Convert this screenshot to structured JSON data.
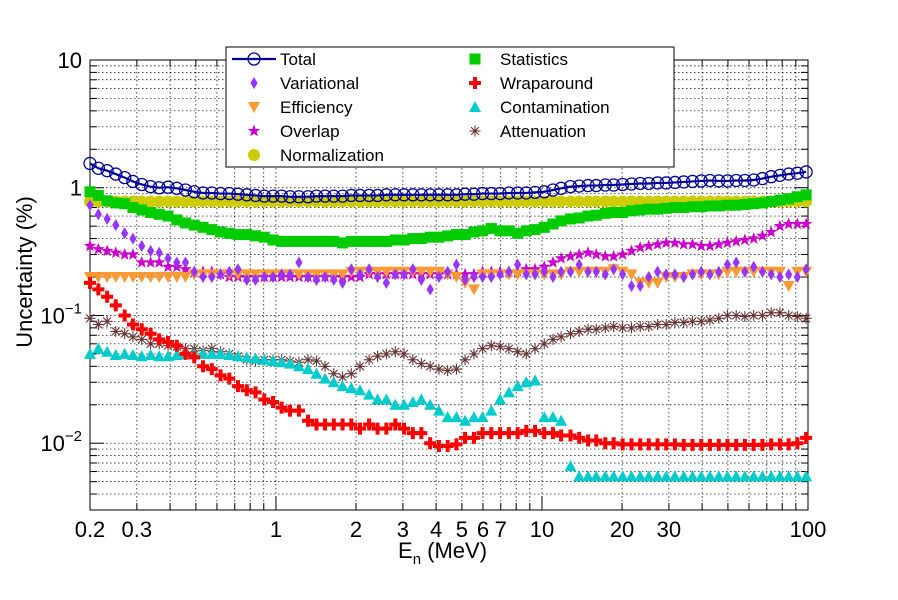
{
  "chart_data": {
    "type": "scatter",
    "xlabel": "E",
    "xlabel_sub": "n",
    "xlabel_unit": " (MeV)",
    "ylabel": "Uncertainty (%)",
    "xscale": "log",
    "yscale": "log",
    "xlim": [
      0.2,
      100
    ],
    "ylim": [
      0.003,
      10
    ],
    "grid": true,
    "legend_placement": "top-center",
    "x_tick_labels": [
      {
        "value": 0.2,
        "label": "0.2"
      },
      {
        "value": 0.3,
        "label": "0.3"
      },
      {
        "value": 1,
        "label": "1"
      },
      {
        "value": 2,
        "label": "2"
      },
      {
        "value": 3,
        "label": "3"
      },
      {
        "value": 4,
        "label": "4"
      },
      {
        "value": 5,
        "label": "5"
      },
      {
        "value": 6,
        "label": "6"
      },
      {
        "value": 7,
        "label": "7"
      },
      {
        "value": 10,
        "label": "10"
      },
      {
        "value": 20,
        "label": "20"
      },
      {
        "value": 30,
        "label": "30"
      },
      {
        "value": 100,
        "label": "100"
      }
    ],
    "y_tick_labels": [
      {
        "value": 10,
        "base": "10",
        "exp": ""
      },
      {
        "value": 1,
        "base": "1",
        "exp": ""
      },
      {
        "value": 0.1,
        "base": "10",
        "exp": "−1"
      },
      {
        "value": 0.01,
        "base": "10",
        "exp": "−2"
      }
    ],
    "x": [
      0.2,
      0.215,
      0.232,
      0.25,
      0.27,
      0.29,
      0.313,
      0.338,
      0.364,
      0.393,
      0.424,
      0.457,
      0.493,
      0.532,
      0.574,
      0.619,
      0.668,
      0.72,
      0.777,
      0.838,
      0.904,
      0.975,
      1.05,
      1.13,
      1.22,
      1.32,
      1.42,
      1.53,
      1.65,
      1.78,
      1.92,
      2.07,
      2.24,
      2.41,
      2.6,
      2.81,
      3.03,
      3.27,
      3.52,
      3.8,
      4.1,
      4.42,
      4.77,
      5.14,
      5.55,
      5.98,
      6.45,
      6.96,
      7.51,
      8.1,
      8.73,
      9.42,
      10.2,
      11,
      11.8,
      12.8,
      13.8,
      14.9,
      16,
      17.3,
      18.6,
      20.1,
      21.7,
      23.4,
      25.2,
      27.2,
      29.3,
      31.6,
      34.1,
      36.8,
      39.7,
      42.8,
      46.2,
      49.8,
      53.7,
      57.9,
      62.5,
      67.4,
      72.7,
      78.4,
      84.6,
      91.2,
      98.4
    ],
    "series": [
      {
        "name": "Total",
        "marker": "open-circle",
        "color": "#000099",
        "line": true,
        "values": [
          1.55,
          1.42,
          1.36,
          1.28,
          1.2,
          1.12,
          1.06,
          1.02,
          1.0,
          1.01,
          0.99,
          0.96,
          0.93,
          0.91,
          0.91,
          0.9,
          0.9,
          0.89,
          0.88,
          0.87,
          0.86,
          0.86,
          0.86,
          0.85,
          0.85,
          0.85,
          0.86,
          0.86,
          0.86,
          0.86,
          0.87,
          0.87,
          0.87,
          0.87,
          0.88,
          0.88,
          0.88,
          0.88,
          0.88,
          0.88,
          0.88,
          0.88,
          0.88,
          0.89,
          0.89,
          0.9,
          0.9,
          0.9,
          0.91,
          0.91,
          0.91,
          0.92,
          0.93,
          0.96,
          0.99,
          1.02,
          1.03,
          1.04,
          1.04,
          1.05,
          1.05,
          1.06,
          1.07,
          1.08,
          1.08,
          1.09,
          1.09,
          1.1,
          1.11,
          1.12,
          1.13,
          1.14,
          1.13,
          1.13,
          1.14,
          1.14,
          1.15,
          1.18,
          1.22,
          1.25,
          1.28,
          1.3,
          1.33
        ]
      },
      {
        "name": "Statistics",
        "marker": "filled-square",
        "color": "#00cc00",
        "line": false,
        "values": [
          0.93,
          0.87,
          0.79,
          0.76,
          0.75,
          0.7,
          0.67,
          0.64,
          0.62,
          0.6,
          0.56,
          0.53,
          0.51,
          0.49,
          0.47,
          0.45,
          0.44,
          0.43,
          0.43,
          0.42,
          0.41,
          0.39,
          0.38,
          0.38,
          0.38,
          0.38,
          0.38,
          0.38,
          0.38,
          0.37,
          0.38,
          0.38,
          0.38,
          0.38,
          0.38,
          0.39,
          0.39,
          0.4,
          0.4,
          0.41,
          0.41,
          0.42,
          0.43,
          0.43,
          0.45,
          0.46,
          0.48,
          0.46,
          0.46,
          0.44,
          0.46,
          0.47,
          0.49,
          0.52,
          0.55,
          0.57,
          0.58,
          0.6,
          0.61,
          0.63,
          0.64,
          0.64,
          0.66,
          0.67,
          0.68,
          0.68,
          0.69,
          0.7,
          0.7,
          0.71,
          0.71,
          0.72,
          0.72,
          0.73,
          0.73,
          0.74,
          0.75,
          0.76,
          0.78,
          0.8,
          0.82,
          0.85,
          0.88
        ]
      },
      {
        "name": "Variational",
        "marker": "filled-diamond",
        "color": "#9933ff",
        "line": false,
        "values": [
          0.73,
          0.62,
          0.57,
          0.51,
          0.44,
          0.4,
          0.35,
          0.32,
          0.31,
          0.28,
          0.26,
          0.26,
          0.22,
          0.2,
          0.2,
          0.21,
          0.22,
          0.23,
          0.19,
          0.19,
          0.2,
          0.2,
          0.21,
          0.21,
          0.26,
          0.2,
          0.19,
          0.2,
          0.19,
          0.18,
          0.23,
          0.21,
          0.23,
          0.2,
          0.18,
          0.21,
          0.21,
          0.23,
          0.19,
          0.16,
          0.2,
          0.22,
          0.25,
          0.19,
          0.2,
          0.2,
          0.2,
          0.21,
          0.22,
          0.25,
          0.21,
          0.21,
          0.22,
          0.2,
          0.22,
          0.22,
          0.25,
          0.22,
          0.22,
          0.21,
          0.23,
          0.21,
          0.17,
          0.17,
          0.2,
          0.22,
          0.21,
          0.21,
          0.2,
          0.21,
          0.22,
          0.21,
          0.22,
          0.25,
          0.26,
          0.22,
          0.24,
          0.22,
          0.21,
          0.2,
          0.21,
          0.2,
          0.23
        ]
      },
      {
        "name": "Wraparound",
        "marker": "filled-cross",
        "color": "#ff0000",
        "line": false,
        "values": [
          0.18,
          0.16,
          0.14,
          0.12,
          0.1,
          0.085,
          0.078,
          0.072,
          0.065,
          0.062,
          0.058,
          0.05,
          0.047,
          0.04,
          0.038,
          0.034,
          0.032,
          0.028,
          0.026,
          0.025,
          0.022,
          0.021,
          0.019,
          0.018,
          0.018,
          0.015,
          0.014,
          0.014,
          0.014,
          0.014,
          0.014,
          0.013,
          0.014,
          0.013,
          0.013,
          0.014,
          0.013,
          0.012,
          0.012,
          0.01,
          0.0095,
          0.0095,
          0.0098,
          0.011,
          0.011,
          0.012,
          0.012,
          0.012,
          0.012,
          0.012,
          0.0125,
          0.0125,
          0.012,
          0.012,
          0.0115,
          0.0115,
          0.011,
          0.0105,
          0.0105,
          0.01,
          0.01,
          0.0098,
          0.0098,
          0.0098,
          0.0098,
          0.0098,
          0.0098,
          0.0098,
          0.0097,
          0.0097,
          0.0097,
          0.0097,
          0.0097,
          0.0097,
          0.0097,
          0.0097,
          0.0097,
          0.0097,
          0.0098,
          0.0098,
          0.0098,
          0.01,
          0.011
        ]
      },
      {
        "name": "Efficiency",
        "marker": "filled-triangle-down",
        "color": "#ff9933",
        "line": false,
        "values": [
          0.2,
          0.2,
          0.2,
          0.2,
          0.2,
          0.2,
          0.2,
          0.2,
          0.2,
          0.2,
          0.2,
          0.2,
          0.21,
          0.21,
          0.21,
          0.21,
          0.21,
          0.21,
          0.21,
          0.21,
          0.21,
          0.21,
          0.21,
          0.21,
          0.21,
          0.21,
          0.21,
          0.21,
          0.21,
          0.21,
          0.22,
          0.22,
          0.22,
          0.22,
          0.22,
          0.22,
          0.22,
          0.22,
          0.22,
          0.22,
          0.22,
          0.21,
          0.2,
          0.18,
          0.16,
          0.21,
          0.21,
          0.21,
          0.21,
          0.21,
          0.21,
          0.21,
          0.21,
          0.21,
          0.21,
          0.22,
          0.22,
          0.22,
          0.22,
          0.22,
          0.23,
          0.22,
          0.21,
          0.18,
          0.18,
          0.18,
          0.2,
          0.2,
          0.2,
          0.21,
          0.21,
          0.21,
          0.21,
          0.22,
          0.22,
          0.22,
          0.22,
          0.22,
          0.22,
          0.22,
          0.17,
          0.22,
          0.22
        ]
      },
      {
        "name": "Contamination",
        "marker": "filled-triangle-up",
        "color": "#00cccc",
        "line": false,
        "values": [
          0.05,
          0.055,
          0.052,
          0.049,
          0.05,
          0.049,
          0.048,
          0.049,
          0.048,
          0.048,
          0.049,
          0.05,
          0.05,
          0.05,
          0.05,
          0.05,
          0.049,
          0.048,
          0.047,
          0.046,
          0.045,
          0.044,
          0.043,
          0.042,
          0.04,
          0.038,
          0.035,
          0.032,
          0.03,
          0.028,
          0.027,
          0.026,
          0.024,
          0.022,
          0.022,
          0.02,
          0.02,
          0.021,
          0.022,
          0.02,
          0.018,
          0.016,
          0.016,
          0.015,
          0.016,
          0.016,
          0.018,
          0.022,
          0.025,
          0.028,
          0.03,
          0.031,
          0.016,
          0.016,
          0.015,
          0.0066,
          0.0055,
          0.0055,
          0.0055,
          0.0055,
          0.0055,
          0.0055,
          0.0055,
          0.0055,
          0.0055,
          0.0055,
          0.0055,
          0.0055,
          0.0055,
          0.0055,
          0.0055,
          0.0055,
          0.0055,
          0.0055,
          0.0055,
          0.0055,
          0.0055,
          0.0055,
          0.0055,
          0.0055,
          0.0055,
          0.0055,
          0.0055
        ]
      },
      {
        "name": "Overlap",
        "marker": "filled-star",
        "color": "#cc00cc",
        "line": false,
        "values": [
          0.35,
          0.33,
          0.32,
          0.31,
          0.3,
          0.3,
          0.26,
          0.26,
          0.26,
          0.24,
          0.24,
          0.23,
          0.22,
          0.22,
          0.22,
          0.21,
          0.2,
          0.2,
          0.2,
          0.2,
          0.2,
          0.2,
          0.2,
          0.2,
          0.2,
          0.2,
          0.2,
          0.2,
          0.2,
          0.2,
          0.2,
          0.2,
          0.21,
          0.21,
          0.21,
          0.21,
          0.21,
          0.21,
          0.21,
          0.21,
          0.21,
          0.21,
          0.21,
          0.21,
          0.21,
          0.22,
          0.22,
          0.22,
          0.22,
          0.22,
          0.23,
          0.23,
          0.24,
          0.26,
          0.28,
          0.29,
          0.3,
          0.31,
          0.3,
          0.29,
          0.29,
          0.3,
          0.32,
          0.34,
          0.35,
          0.36,
          0.37,
          0.37,
          0.36,
          0.36,
          0.35,
          0.35,
          0.36,
          0.37,
          0.38,
          0.39,
          0.4,
          0.42,
          0.45,
          0.5,
          0.52,
          0.52,
          0.52
        ]
      },
      {
        "name": "Attenuation",
        "marker": "asterisk",
        "color": "#663333",
        "line": false,
        "values": [
          0.095,
          0.085,
          0.09,
          0.075,
          0.072,
          0.068,
          0.065,
          0.06,
          0.06,
          0.058,
          0.057,
          0.055,
          0.055,
          0.053,
          0.055,
          0.052,
          0.05,
          0.048,
          0.045,
          0.044,
          0.045,
          0.045,
          0.045,
          0.044,
          0.043,
          0.045,
          0.044,
          0.04,
          0.035,
          0.033,
          0.035,
          0.04,
          0.045,
          0.048,
          0.05,
          0.052,
          0.05,
          0.045,
          0.042,
          0.04,
          0.038,
          0.037,
          0.038,
          0.045,
          0.05,
          0.055,
          0.058,
          0.057,
          0.055,
          0.052,
          0.05,
          0.055,
          0.06,
          0.065,
          0.068,
          0.072,
          0.075,
          0.078,
          0.078,
          0.08,
          0.082,
          0.08,
          0.08,
          0.082,
          0.082,
          0.085,
          0.085,
          0.088,
          0.088,
          0.09,
          0.09,
          0.092,
          0.095,
          0.1,
          0.1,
          0.098,
          0.1,
          0.1,
          0.105,
          0.105,
          0.1,
          0.098,
          0.095
        ]
      },
      {
        "name": "Normalization",
        "marker": "filled-circle",
        "color": "#cccc00",
        "line": false,
        "values": [
          0.78,
          0.78,
          0.78,
          0.78,
          0.78,
          0.78,
          0.78,
          0.78,
          0.78,
          0.78,
          0.78,
          0.78,
          0.78,
          0.78,
          0.78,
          0.78,
          0.78,
          0.78,
          0.78,
          0.78,
          0.78,
          0.78,
          0.78,
          0.78,
          0.78,
          0.78,
          0.78,
          0.78,
          0.78,
          0.78,
          0.78,
          0.78,
          0.78,
          0.78,
          0.78,
          0.78,
          0.78,
          0.78,
          0.78,
          0.78,
          0.78,
          0.78,
          0.78,
          0.78,
          0.78,
          0.78,
          0.78,
          0.78,
          0.78,
          0.78,
          0.78,
          0.78,
          0.78,
          0.78,
          0.78,
          0.78,
          0.78,
          0.78,
          0.78,
          0.78,
          0.78,
          0.78,
          0.78,
          0.78,
          0.78,
          0.78,
          0.78,
          0.78,
          0.78,
          0.78,
          0.78,
          0.78,
          0.78,
          0.78,
          0.78,
          0.78,
          0.78,
          0.78,
          0.78,
          0.78,
          0.78,
          0.78,
          0.78
        ]
      }
    ],
    "legend": {
      "left_column": [
        "Total",
        "Variational",
        "Efficiency",
        "Overlap",
        "Normalization"
      ],
      "right_column": [
        "Statistics",
        "Wraparound",
        "Contamination",
        "Attenuation"
      ]
    }
  }
}
